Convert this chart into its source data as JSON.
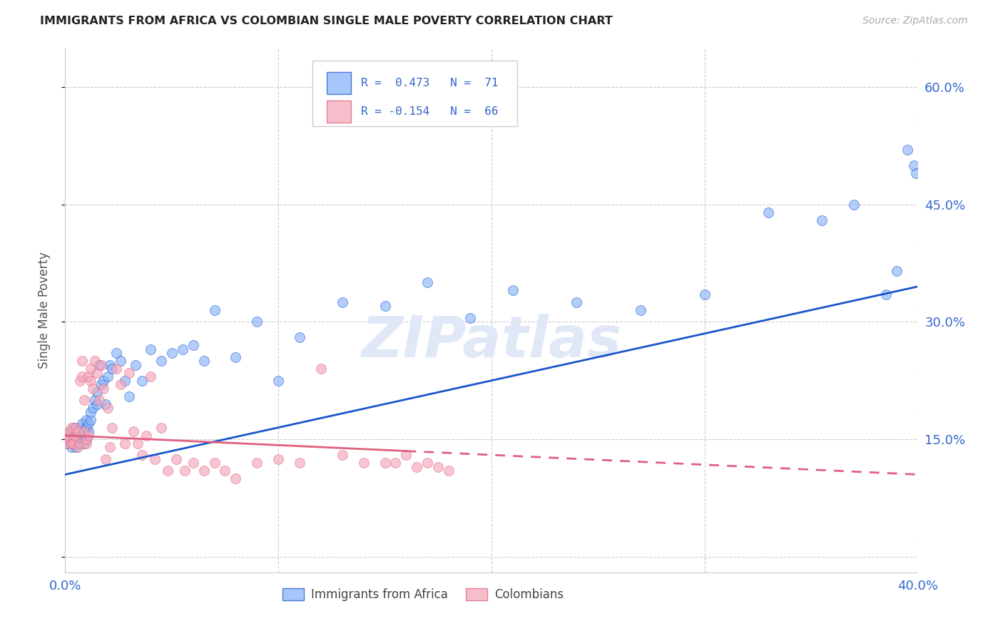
{
  "title": "IMMIGRANTS FROM AFRICA VS COLOMBIAN SINGLE MALE POVERTY CORRELATION CHART",
  "source": "Source: ZipAtlas.com",
  "ylabel": "Single Male Poverty",
  "yticks": [
    0.0,
    0.15,
    0.3,
    0.45,
    0.6
  ],
  "ytick_labels": [
    "",
    "15.0%",
    "30.0%",
    "45.0%",
    "60.0%"
  ],
  "xlim": [
    0.0,
    0.4
  ],
  "ylim": [
    -0.02,
    0.65
  ],
  "xticks": [
    0.0,
    0.4
  ],
  "xtick_labels": [
    "0.0%",
    "40.0%"
  ],
  "series1_color": "#8ab4f8",
  "series2_color": "#f4a7b9",
  "trend1_color": "#1a56cc",
  "trend2_color": "#e06080",
  "watermark": "ZIPatlas",
  "trend1_x0": 0.0,
  "trend1_y0": 0.105,
  "trend1_x1": 0.4,
  "trend1_y1": 0.345,
  "trend2_x0": 0.0,
  "trend2_y0": 0.155,
  "trend2_x1": 0.4,
  "trend2_y1": 0.105,
  "trend2_solid_end": 0.16,
  "africa_x": [
    0.001,
    0.002,
    0.002,
    0.003,
    0.003,
    0.004,
    0.004,
    0.005,
    0.005,
    0.005,
    0.006,
    0.006,
    0.007,
    0.007,
    0.007,
    0.008,
    0.008,
    0.008,
    0.009,
    0.009,
    0.01,
    0.01,
    0.01,
    0.011,
    0.011,
    0.012,
    0.012,
    0.013,
    0.014,
    0.015,
    0.015,
    0.016,
    0.017,
    0.018,
    0.019,
    0.02,
    0.021,
    0.022,
    0.024,
    0.026,
    0.028,
    0.03,
    0.033,
    0.036,
    0.04,
    0.045,
    0.05,
    0.055,
    0.06,
    0.065,
    0.07,
    0.08,
    0.09,
    0.1,
    0.11,
    0.13,
    0.15,
    0.17,
    0.19,
    0.21,
    0.24,
    0.27,
    0.3,
    0.33,
    0.355,
    0.37,
    0.385,
    0.39,
    0.395,
    0.398,
    0.399
  ],
  "africa_y": [
    0.145,
    0.15,
    0.155,
    0.14,
    0.16,
    0.145,
    0.165,
    0.14,
    0.155,
    0.145,
    0.15,
    0.16,
    0.145,
    0.155,
    0.165,
    0.15,
    0.16,
    0.17,
    0.145,
    0.16,
    0.15,
    0.165,
    0.175,
    0.16,
    0.17,
    0.175,
    0.185,
    0.19,
    0.2,
    0.21,
    0.195,
    0.245,
    0.22,
    0.225,
    0.195,
    0.23,
    0.245,
    0.24,
    0.26,
    0.25,
    0.225,
    0.205,
    0.245,
    0.225,
    0.265,
    0.25,
    0.26,
    0.265,
    0.27,
    0.25,
    0.315,
    0.255,
    0.3,
    0.225,
    0.28,
    0.325,
    0.32,
    0.35,
    0.305,
    0.34,
    0.325,
    0.315,
    0.335,
    0.44,
    0.43,
    0.45,
    0.335,
    0.365,
    0.52,
    0.5,
    0.49
  ],
  "colombia_x": [
    0.001,
    0.001,
    0.002,
    0.002,
    0.003,
    0.003,
    0.004,
    0.004,
    0.005,
    0.005,
    0.006,
    0.006,
    0.007,
    0.007,
    0.008,
    0.008,
    0.009,
    0.009,
    0.01,
    0.01,
    0.011,
    0.011,
    0.012,
    0.012,
    0.013,
    0.014,
    0.015,
    0.016,
    0.017,
    0.018,
    0.019,
    0.02,
    0.021,
    0.022,
    0.024,
    0.026,
    0.028,
    0.03,
    0.032,
    0.034,
    0.036,
    0.038,
    0.04,
    0.042,
    0.045,
    0.048,
    0.052,
    0.056,
    0.06,
    0.065,
    0.07,
    0.075,
    0.08,
    0.09,
    0.1,
    0.11,
    0.12,
    0.13,
    0.14,
    0.15,
    0.155,
    0.16,
    0.165,
    0.17,
    0.175,
    0.18
  ],
  "colombia_y": [
    0.145,
    0.155,
    0.15,
    0.16,
    0.145,
    0.165,
    0.15,
    0.145,
    0.155,
    0.165,
    0.14,
    0.16,
    0.145,
    0.225,
    0.25,
    0.23,
    0.2,
    0.16,
    0.145,
    0.15,
    0.155,
    0.23,
    0.24,
    0.225,
    0.215,
    0.25,
    0.235,
    0.2,
    0.245,
    0.215,
    0.125,
    0.19,
    0.14,
    0.165,
    0.24,
    0.22,
    0.145,
    0.235,
    0.16,
    0.145,
    0.13,
    0.155,
    0.23,
    0.125,
    0.165,
    0.11,
    0.125,
    0.11,
    0.12,
    0.11,
    0.12,
    0.11,
    0.1,
    0.12,
    0.125,
    0.12,
    0.24,
    0.13,
    0.12,
    0.12,
    0.12,
    0.13,
    0.115,
    0.12,
    0.115,
    0.11
  ]
}
